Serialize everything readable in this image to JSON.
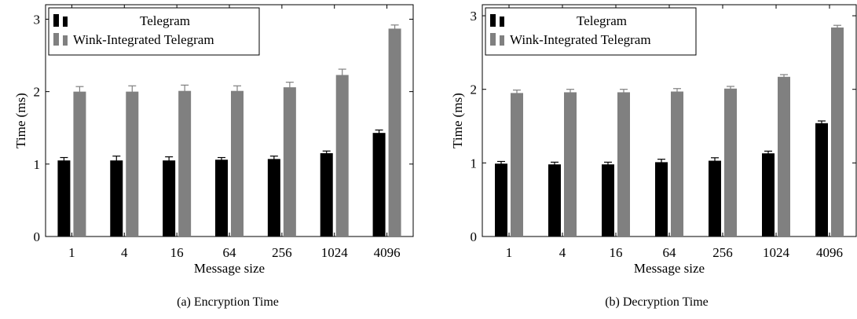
{
  "chart_data": [
    {
      "type": "bar",
      "caption": "(a) Encryption Time",
      "xlabel": "Message size",
      "ylabel": "Time (ms)",
      "categories": [
        "1",
        "4",
        "16",
        "64",
        "256",
        "1024",
        "4096"
      ],
      "ylim": [
        0,
        3.2
      ],
      "yticks": [
        0,
        1,
        2,
        3
      ],
      "legend_position": "top-left",
      "series": [
        {
          "name": "Telegram",
          "color": "#000000",
          "values": [
            1.05,
            1.05,
            1.05,
            1.06,
            1.07,
            1.15,
            1.43
          ],
          "errors": [
            0.04,
            0.06,
            0.05,
            0.03,
            0.04,
            0.03,
            0.04
          ]
        },
        {
          "name": "Wink-Integrated Telegram",
          "color": "#808080",
          "values": [
            2.0,
            2.0,
            2.01,
            2.01,
            2.06,
            2.23,
            2.87
          ],
          "errors": [
            0.07,
            0.08,
            0.08,
            0.07,
            0.07,
            0.08,
            0.05
          ]
        }
      ]
    },
    {
      "type": "bar",
      "caption": "(b) Decryption Time",
      "xlabel": "Message size",
      "ylabel": "Time (ms)",
      "categories": [
        "1",
        "4",
        "16",
        "64",
        "256",
        "1024",
        "4096"
      ],
      "ylim": [
        0,
        3.15
      ],
      "yticks": [
        0,
        1,
        2,
        3
      ],
      "legend_position": "top-left",
      "series": [
        {
          "name": "Telegram",
          "color": "#000000",
          "values": [
            0.99,
            0.98,
            0.98,
            1.01,
            1.03,
            1.13,
            1.54
          ],
          "errors": [
            0.03,
            0.03,
            0.03,
            0.04,
            0.04,
            0.03,
            0.03
          ]
        },
        {
          "name": "Wink-Integrated Telegram",
          "color": "#808080",
          "values": [
            1.95,
            1.96,
            1.96,
            1.97,
            2.01,
            2.17,
            2.84
          ],
          "errors": [
            0.04,
            0.04,
            0.04,
            0.04,
            0.03,
            0.03,
            0.03
          ]
        }
      ]
    }
  ]
}
